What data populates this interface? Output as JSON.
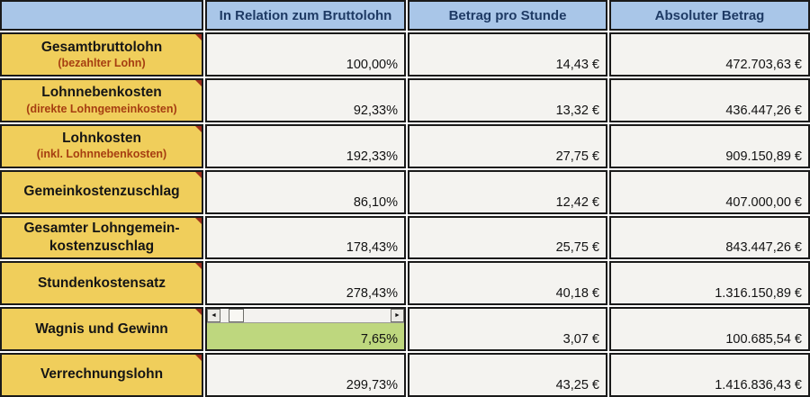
{
  "colors": {
    "header-bg": "#A9C6E8",
    "header-text": "#1E3A64",
    "label-bg": "#F0CE5B",
    "sub-text": "#A63E11",
    "cell-bg": "#F4F3F0",
    "highlight-bg": "#BED77E",
    "note": "#9E2F1C",
    "border": "#1A1A1A",
    "text": "#121212"
  },
  "header": {
    "columns": [
      "",
      "In Relation zum Bruttolohn",
      "Betrag pro Stunde",
      "Absoluter Betrag"
    ]
  },
  "rows": [
    {
      "label": "Gesamtbruttolohn",
      "sublabel": "(bezahlter Lohn)",
      "relation": "100,00%",
      "per_hour": "14,43 €",
      "absolute": "472.703,63 €",
      "highlight": false,
      "scrollbar": false
    },
    {
      "label": "Lohnnebenkosten",
      "sublabel": "(direkte Lohngemeinkosten)",
      "relation": "92,33%",
      "per_hour": "13,32 €",
      "absolute": "436.447,26 €",
      "highlight": false,
      "scrollbar": false
    },
    {
      "label": "Lohnkosten",
      "sublabel": "(inkl. Lohnnebenkosten)",
      "relation": "192,33%",
      "per_hour": "27,75 €",
      "absolute": "909.150,89 €",
      "highlight": false,
      "scrollbar": false
    },
    {
      "label": "Gemeinkostenzuschlag",
      "sublabel": "",
      "relation": "86,10%",
      "per_hour": "12,42 €",
      "absolute": "407.000,00 €",
      "highlight": false,
      "scrollbar": false
    },
    {
      "label": "Gesamter Lohngemein-kostenzuschlag",
      "sublabel": "",
      "relation": "178,43%",
      "per_hour": "25,75 €",
      "absolute": "843.447,26 €",
      "highlight": false,
      "scrollbar": false
    },
    {
      "label": "Stundenkostensatz",
      "sublabel": "",
      "relation": "278,43%",
      "per_hour": "40,18 €",
      "absolute": "1.316.150,89 €",
      "highlight": false,
      "scrollbar": false
    },
    {
      "label": "Wagnis und Gewinn",
      "sublabel": "",
      "relation": "7,65%",
      "per_hour": "3,07 €",
      "absolute": "100.685,54 €",
      "highlight": true,
      "scrollbar": true
    },
    {
      "label": "Verrechnungslohn",
      "sublabel": "",
      "relation": "299,73%",
      "per_hour": "43,25 €",
      "absolute": "1.416.836,43 €",
      "highlight": false,
      "scrollbar": false
    }
  ],
  "scrollbar": {
    "left_glyph": "◄",
    "right_glyph": "►"
  }
}
